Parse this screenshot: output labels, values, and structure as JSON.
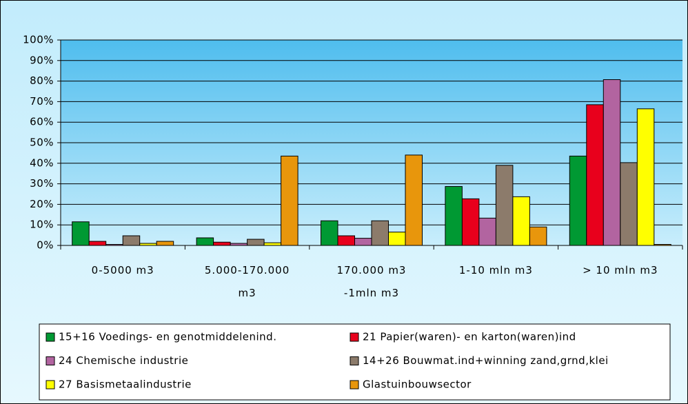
{
  "chart_data": {
    "type": "bar",
    "categories": [
      "0-5000 m3",
      "5.000-170.000 m3",
      "170.000 m3 -1mln m3",
      "1-10 mln m3",
      "> 10 mln m3"
    ],
    "series": [
      {
        "name": "15+16 Voedings- en genotmiddelenind.",
        "color": "#009933",
        "values": [
          11.5,
          3.7,
          12,
          28.7,
          43.5
        ]
      },
      {
        "name": "21 Papier(waren)- en karton(waren)ind",
        "color": "#e8001c",
        "values": [
          2,
          1.6,
          4.7,
          22.7,
          68.5
        ]
      },
      {
        "name": "24 Chemische industrie",
        "color": "#b264a0",
        "values": [
          0.5,
          1,
          3.5,
          13.3,
          80.7
        ]
      },
      {
        "name": "14+26 Bouwmat.ind+winning zand,grnd,klei",
        "color": "#8c7b6b",
        "values": [
          4.7,
          3,
          12,
          39,
          40.3
        ]
      },
      {
        "name": "27 Basismetaalindustrie",
        "color": "#ffff00",
        "values": [
          1,
          1.3,
          6.5,
          23.7,
          66.5
        ]
      },
      {
        "name": "Glastuinbouwsector",
        "color": "#e8960c",
        "values": [
          2,
          43.5,
          44,
          9,
          0.5
        ]
      }
    ],
    "ylim": [
      0,
      100
    ],
    "yticks": [
      {
        "value": 0,
        "label": "0%"
      },
      {
        "value": 10,
        "label": "10%"
      },
      {
        "value": 20,
        "label": "20%"
      },
      {
        "value": 30,
        "label": "30%"
      },
      {
        "value": 40,
        "label": "40%"
      },
      {
        "value": 50,
        "label": "50%"
      },
      {
        "value": 60,
        "label": "60%"
      },
      {
        "value": 70,
        "label": "70%"
      },
      {
        "value": 80,
        "label": "80%"
      },
      {
        "value": 90,
        "label": "90%"
      },
      {
        "value": 100,
        "label": "100%"
      }
    ],
    "grid": true,
    "legend": "bottom"
  }
}
